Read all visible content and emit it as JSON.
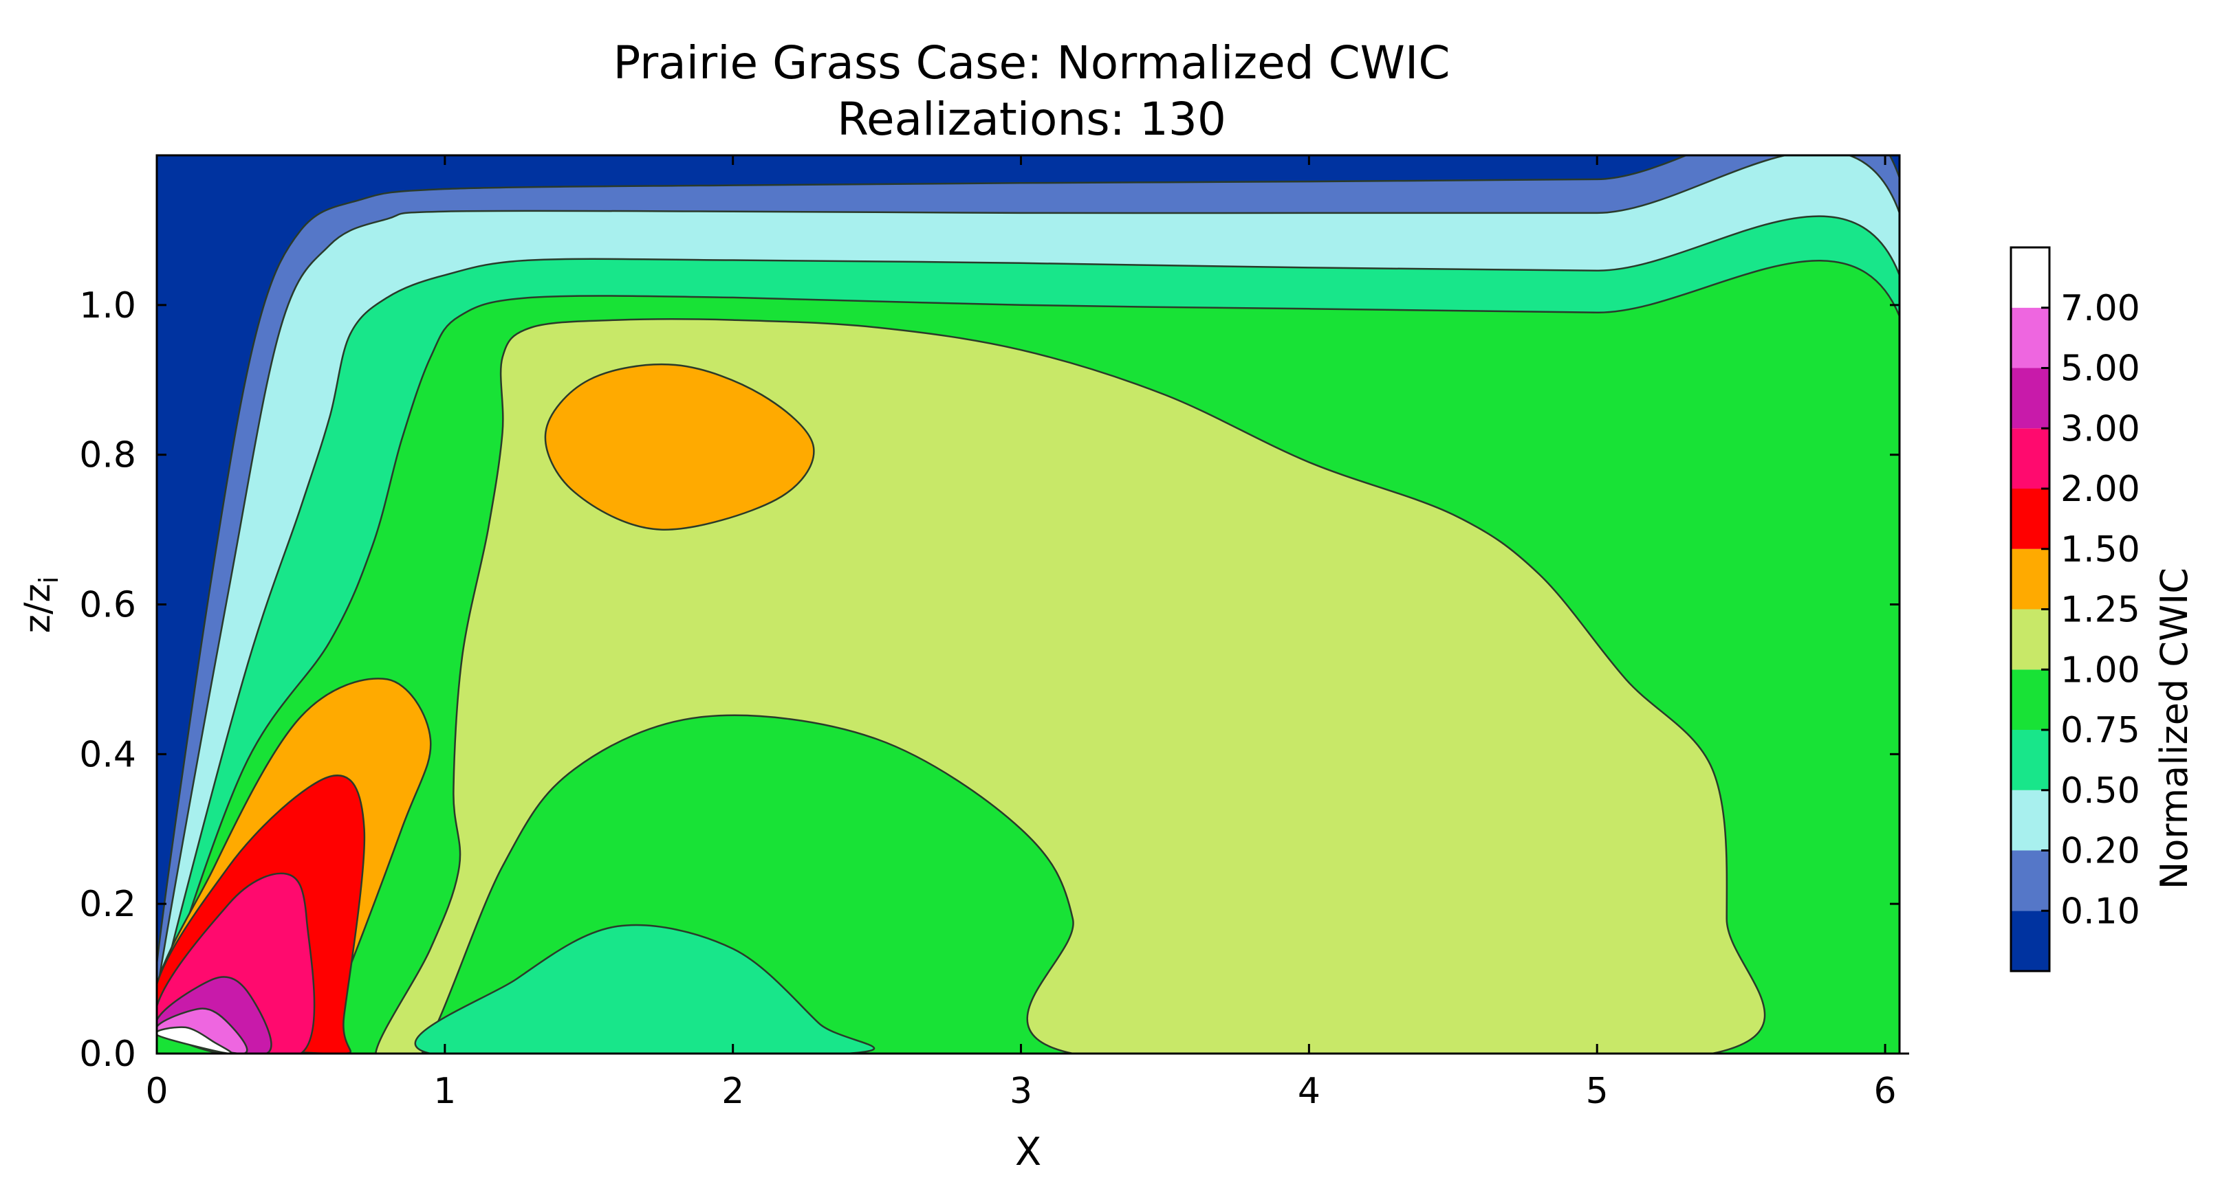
{
  "chart_data": {
    "type": "contour",
    "title": "Prairie Grass Case: Normalized CWIC",
    "subtitle": "Realizations: 130",
    "xlabel": "X",
    "ylabel_main": "z/z",
    "ylabel_sub": "i",
    "xlim": [
      0,
      6.05
    ],
    "ylim": [
      0,
      1.2
    ],
    "xticks": [
      0,
      1,
      2,
      3,
      4,
      5,
      6
    ],
    "xtick_labels": [
      "0",
      "1",
      "2",
      "3",
      "4",
      "5",
      "6"
    ],
    "yticks": [
      0.0,
      0.2,
      0.4,
      0.6,
      0.8,
      1.0
    ],
    "ytick_labels": [
      "0.0",
      "0.2",
      "0.4",
      "0.6",
      "0.8",
      "1.0"
    ],
    "colorbar": {
      "label": "Normalized CWIC",
      "levels": [
        "0.10",
        "0.20",
        "0.50",
        "0.75",
        "1.00",
        "1.25",
        "1.50",
        "2.00",
        "3.00",
        "5.00",
        "7.00"
      ],
      "colors": [
        "#0033a0",
        "#5577c8",
        "#a8f0ee",
        "#18e68a",
        "#18e236",
        "#c8e868",
        "#ffaa00",
        "#ff0000",
        "#ff0a6e",
        "#c81aaa",
        "#ee66e0",
        "#ffffff"
      ]
    },
    "regions": [
      {
        "level": "0.10",
        "color": "#5577c8",
        "boundary": [
          [
            0,
            0.12
          ],
          [
            0.2,
            0.66
          ],
          [
            0.35,
            0.97
          ],
          [
            0.5,
            1.1
          ],
          [
            0.7,
            1.14
          ],
          [
            1,
            1.155
          ],
          [
            2,
            1.16
          ],
          [
            3,
            1.163
          ],
          [
            4,
            1.165
          ],
          [
            5,
            1.168
          ],
          [
            6.05,
            1.17
          ],
          [
            6.05,
            0
          ],
          [
            0,
            0
          ]
        ]
      },
      {
        "level": "0.20",
        "color": "#a8f0ee",
        "boundary": [
          [
            0,
            0.08
          ],
          [
            0.25,
            0.62
          ],
          [
            0.43,
            0.97
          ],
          [
            0.6,
            1.08
          ],
          [
            0.8,
            1.115
          ],
          [
            1,
            1.125
          ],
          [
            2,
            1.125
          ],
          [
            3,
            1.123
          ],
          [
            4,
            1.123
          ],
          [
            5,
            1.123
          ],
          [
            6.05,
            1.123
          ],
          [
            6.05,
            0
          ],
          [
            0,
            0
          ]
        ]
      },
      {
        "level": "0.50",
        "color": "#18e68a",
        "boundary": [
          [
            0,
            0.06
          ],
          [
            0.3,
            0.5
          ],
          [
            0.5,
            0.73
          ],
          [
            0.6,
            0.85
          ],
          [
            0.67,
            0.96
          ],
          [
            0.8,
            1.01
          ],
          [
            1,
            1.04
          ],
          [
            1.3,
            1.06
          ],
          [
            2,
            1.06
          ],
          [
            3,
            1.056
          ],
          [
            4,
            1.05
          ],
          [
            5,
            1.046
          ],
          [
            6.05,
            1.04
          ],
          [
            6.05,
            0
          ],
          [
            0,
            0
          ]
        ]
      },
      {
        "level": "0.75",
        "color": "#18e236",
        "boundary": [
          [
            0,
            0.05
          ],
          [
            0.3,
            0.38
          ],
          [
            0.6,
            0.55
          ],
          [
            0.75,
            0.68
          ],
          [
            0.85,
            0.82
          ],
          [
            0.95,
            0.93
          ],
          [
            1.05,
            0.985
          ],
          [
            1.3,
            1.01
          ],
          [
            2,
            1.01
          ],
          [
            3,
            1.0
          ],
          [
            4,
            0.995
          ],
          [
            5,
            0.99
          ],
          [
            6.05,
            0.985
          ],
          [
            6.05,
            0
          ],
          [
            0,
            0
          ]
        ]
      },
      {
        "level": "1.00",
        "color": "#c8e868",
        "boundary": [
          [
            0.76,
            0
          ],
          [
            0.95,
            0.14
          ],
          [
            1.05,
            0.25
          ],
          [
            1.03,
            0.35
          ],
          [
            1.06,
            0.53
          ],
          [
            1.15,
            0.7
          ],
          [
            1.2,
            0.83
          ],
          [
            1.2,
            0.93
          ],
          [
            1.3,
            0.97
          ],
          [
            1.6,
            0.98
          ],
          [
            2,
            0.98
          ],
          [
            2.5,
            0.97
          ],
          [
            3,
            0.94
          ],
          [
            3.5,
            0.88
          ],
          [
            4,
            0.79
          ],
          [
            4.5,
            0.72
          ],
          [
            4.8,
            0.64
          ],
          [
            5.1,
            0.5
          ],
          [
            5.4,
            0.38
          ],
          [
            5.45,
            0.18
          ],
          [
            5.4,
            0
          ],
          [
            3.18,
            0
          ],
          [
            3.18,
            0.18
          ],
          [
            3.0,
            0.3
          ],
          [
            2.5,
            0.42
          ],
          [
            1.9,
            0.45
          ],
          [
            1.45,
            0.38
          ],
          [
            1.2,
            0.25
          ],
          [
            0.92,
            0
          ]
        ]
      },
      {
        "level": "1.25",
        "color": "#ffaa00",
        "boundary": [
          [
            1.35,
            0.83
          ],
          [
            1.5,
            0.9
          ],
          [
            1.8,
            0.92
          ],
          [
            2.1,
            0.88
          ],
          [
            2.28,
            0.81
          ],
          [
            2.15,
            0.74
          ],
          [
            1.75,
            0.7
          ],
          [
            1.45,
            0.75
          ]
        ]
      },
      {
        "level": "1.25",
        "color": "#ffaa00",
        "boundary": [
          [
            0,
            0.05
          ],
          [
            0.2,
            0.25
          ],
          [
            0.5,
            0.45
          ],
          [
            0.8,
            0.5
          ],
          [
            0.95,
            0.42
          ],
          [
            0.85,
            0.3
          ],
          [
            0.6,
            0.05
          ],
          [
            0.5,
            0
          ]
        ]
      },
      {
        "level": "0.50",
        "color": "#18e68a",
        "boundary": [
          [
            0.95,
            0
          ],
          [
            1.25,
            0.1
          ],
          [
            1.6,
            0.17
          ],
          [
            2.0,
            0.14
          ],
          [
            2.3,
            0.04
          ],
          [
            2.4,
            0
          ]
        ]
      },
      {
        "level": "1.50",
        "color": "#ff0000",
        "boundary": [
          [
            0,
            0.05
          ],
          [
            0.25,
            0.25
          ],
          [
            0.6,
            0.37
          ],
          [
            0.72,
            0.3
          ],
          [
            0.65,
            0.05
          ],
          [
            0.62,
            0
          ]
        ]
      },
      {
        "level": "2.00",
        "color": "#ff0a6e",
        "boundary": [
          [
            0,
            0.04
          ],
          [
            0.25,
            0.2
          ],
          [
            0.45,
            0.24
          ],
          [
            0.52,
            0.18
          ],
          [
            0.5,
            0
          ]
        ]
      },
      {
        "level": "3.00",
        "color": "#c81aaa",
        "boundary": [
          [
            0,
            0.035
          ],
          [
            0.2,
            0.1
          ],
          [
            0.32,
            0.08
          ],
          [
            0.38,
            0
          ]
        ]
      },
      {
        "level": "5.00",
        "color": "#ee66e0",
        "boundary": [
          [
            0,
            0.03
          ],
          [
            0.15,
            0.06
          ],
          [
            0.25,
            0.04
          ],
          [
            0.3,
            0
          ]
        ]
      },
      {
        "level": "7.00",
        "color": "#ffffff",
        "boundary": [
          [
            0,
            0.025
          ],
          [
            0.1,
            0.035
          ],
          [
            0.2,
            0.015
          ],
          [
            0.25,
            0
          ]
        ]
      }
    ]
  }
}
